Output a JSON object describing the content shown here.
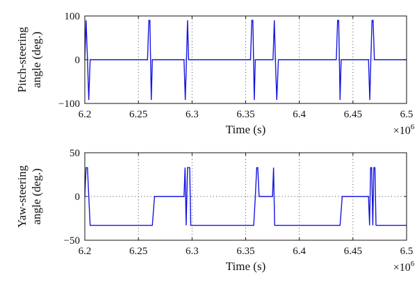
{
  "chart_data": [
    {
      "type": "line",
      "xlabel": "Time (s)",
      "ylabel": [
        "Pitch-steering",
        "angle (deg.)"
      ],
      "x_multiplier": {
        "base": "×10",
        "exponent": "6"
      },
      "xlim": [
        6.2,
        6.5
      ],
      "ylim": [
        -100,
        100
      ],
      "xticks": [
        6.2,
        6.25,
        6.3,
        6.35,
        6.4,
        6.45,
        6.5
      ],
      "xtick_labels": [
        "6.2",
        "6.25",
        "6.3",
        "6.35",
        "6.4",
        "6.45",
        "6.5"
      ],
      "yticks": [
        -100,
        0,
        100
      ],
      "ytick_labels": [
        "−100",
        "0",
        "100"
      ],
      "grid": "dotted",
      "line_color": "#1515e0",
      "series": [
        {
          "x": [
            6.2,
            6.2012,
            6.2025,
            6.2037,
            6.205,
            6.206,
            6.2585,
            6.2597,
            6.2607,
            6.262,
            6.263,
            6.2925,
            6.2937,
            6.2948,
            6.2958,
            6.2968,
            6.298,
            6.3545,
            6.3557,
            6.3567,
            6.358,
            6.359,
            6.3755,
            6.3767,
            6.3777,
            6.379,
            6.3805,
            6.4345,
            6.4357,
            6.4367,
            6.438,
            6.439,
            6.4645,
            6.4657,
            6.4667,
            6.4678,
            6.4688,
            6.47,
            6.471,
            6.5
          ],
          "y": [
            0,
            90,
            0,
            -92,
            0,
            0,
            0,
            90,
            90,
            -92,
            0,
            0,
            -92,
            0,
            90,
            0,
            0,
            0,
            90,
            90,
            -92,
            0,
            0,
            90,
            0,
            -92,
            0,
            0,
            90,
            90,
            -92,
            0,
            0,
            -92,
            0,
            90,
            90,
            0,
            0,
            0
          ]
        }
      ]
    },
    {
      "type": "line",
      "xlabel": "Time (s)",
      "ylabel": [
        "Yaw-steering",
        "angle (deg.)"
      ],
      "x_multiplier": {
        "base": "×10",
        "exponent": "6"
      },
      "xlim": [
        6.2,
        6.5
      ],
      "ylim": [
        -50,
        50
      ],
      "xticks": [
        6.2,
        6.25,
        6.3,
        6.35,
        6.4,
        6.45,
        6.5
      ],
      "xtick_labels": [
        "6.2",
        "6.25",
        "6.3",
        "6.35",
        "6.4",
        "6.45",
        "6.5"
      ],
      "yticks": [
        -50,
        0,
        50
      ],
      "ytick_labels": [
        "−50",
        "0",
        "50"
      ],
      "grid": "dotted",
      "line_color": "#1515e0",
      "series": [
        {
          "x": [
            6.2,
            6.2012,
            6.2025,
            6.2037,
            6.205,
            6.263,
            6.265,
            6.2925,
            6.2935,
            6.2945,
            6.2958,
            6.2968,
            6.2978,
            6.2988,
            6.3575,
            6.359,
            6.3603,
            6.3613,
            6.3625,
            6.375,
            6.376,
            6.377,
            6.378,
            6.379,
            6.438,
            6.44,
            6.4645,
            6.4655,
            6.4665,
            6.4675,
            6.4685,
            6.4695,
            6.4705,
            6.4715,
            6.5
          ],
          "y": [
            0,
            33,
            33,
            0,
            -33,
            -33,
            0,
            0,
            33,
            -33,
            33,
            33,
            33,
            -33,
            -33,
            0,
            33,
            33,
            0,
            0,
            33,
            -33,
            -33,
            -33,
            -33,
            0,
            0,
            -33,
            33,
            33,
            -33,
            33,
            33,
            -33,
            -33
          ]
        }
      ]
    }
  ]
}
